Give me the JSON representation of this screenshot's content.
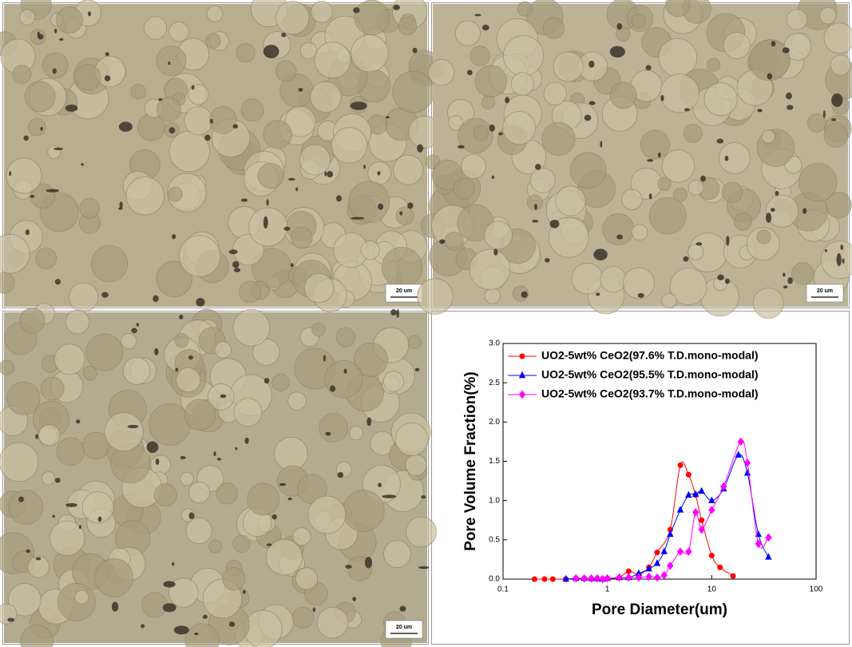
{
  "micrographs": [
    {
      "scale_bar": "20 um"
    },
    {
      "scale_bar": "20 um"
    },
    {
      "scale_bar": "20 um"
    }
  ],
  "chart_data": {
    "type": "line",
    "x_label": "Pore Diameter(um)",
    "y_label": "Pore Volume Fraction(%)",
    "xscale": "log",
    "xlim": [
      0.1,
      100
    ],
    "xticks": [
      0.1,
      1,
      10,
      100
    ],
    "ylim": [
      0,
      3.0
    ],
    "yticks": [
      {
        "value": 0,
        "label": "0.0"
      },
      {
        "value": 0.5,
        "label": "0.5"
      },
      {
        "value": 1.0,
        "label": "1.0"
      },
      {
        "value": 1.5,
        "label": "1.5"
      },
      {
        "value": 2.0,
        "label": "2.0"
      },
      {
        "value": 2.5,
        "label": "2.5"
      },
      {
        "value": 3.0,
        "label": "3.0"
      }
    ],
    "legend": "upper left",
    "series": [
      {
        "name": "UO2-5wt% CeO2(97.6% T.D.mono-modal)",
        "color": "#ff0000",
        "marker": "circle",
        "x": [
          0.2,
          0.25,
          0.3,
          0.4,
          0.5,
          0.6,
          0.7,
          0.8,
          0.9,
          1.0,
          1.3,
          1.6,
          2.0,
          2.5,
          3.0,
          4.0,
          5.0,
          6.0,
          7.0,
          8.0,
          10,
          12,
          16
        ],
        "values": [
          0,
          0,
          0,
          0,
          0.01,
          0.01,
          0,
          0,
          0,
          0.01,
          0.02,
          0.1,
          0.06,
          0.15,
          0.34,
          0.63,
          1.45,
          1.33,
          1.07,
          0.75,
          0.3,
          0.15,
          0.04
        ]
      },
      {
        "name": "UO2-5wt% CeO2(95.5% T.D.mono-modal)",
        "color": "#0000ff",
        "marker": "triangle",
        "x": [
          0.4,
          0.5,
          0.6,
          0.7,
          0.8,
          0.9,
          1.0,
          1.3,
          1.6,
          2.0,
          2.5,
          3.0,
          3.5,
          4.0,
          5.0,
          6.0,
          7.0,
          8.0,
          10,
          13,
          18,
          22,
          28,
          35
        ],
        "values": [
          0,
          0.01,
          0.01,
          0.01,
          0.01,
          0,
          0.01,
          0.02,
          0.02,
          0.07,
          0.13,
          0.2,
          0.35,
          0.57,
          0.88,
          1.07,
          1.08,
          1.12,
          1.0,
          1.15,
          1.58,
          1.35,
          0.57,
          0.28
        ]
      },
      {
        "name": "UO2-5wt% CeO2(93.7% T.D.mono-modal)",
        "color": "#ff00ff",
        "marker": "diamond",
        "x": [
          0.5,
          0.6,
          0.7,
          0.8,
          0.9,
          1.0,
          1.3,
          1.6,
          2.0,
          2.5,
          3.0,
          3.5,
          4.0,
          5.0,
          6.0,
          7.0,
          8.0,
          10,
          13,
          19,
          22,
          28,
          35
        ],
        "values": [
          0.01,
          0.01,
          0.01,
          0.01,
          0,
          0.01,
          0.02,
          0.02,
          0.02,
          0.03,
          0.02,
          0.05,
          0.17,
          0.35,
          0.35,
          0.85,
          0.63,
          0.88,
          1.18,
          1.75,
          1.48,
          0.45,
          0.53
        ]
      }
    ]
  }
}
